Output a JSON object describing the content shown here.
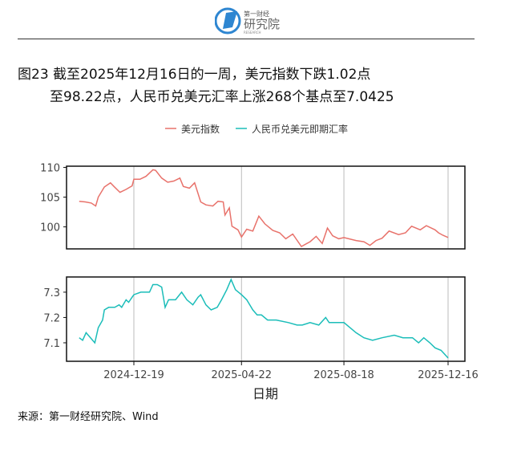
{
  "header": {
    "logo_text": "第一财经 研究院 RESEARCH"
  },
  "title": {
    "line1": "图23  截至2025年12月16日的一周，美元指数下跌1.02点",
    "line2": "至98.22点，人民币兑美元汇率上涨268个基点至7.0425"
  },
  "source": "来源：第一财经研究院、Wind",
  "chart_data": {
    "type": "line",
    "xlabel": "日期",
    "x_ticks": [
      "2024-12-19",
      "2025-04-22",
      "2025-08-18",
      "2025-12-16"
    ],
    "legend_position": "top",
    "grid": "vertical major only",
    "panels": [
      {
        "series_name": "美元指数",
        "color": "#E8726B",
        "ylim": [
          96.3,
          110.2
        ],
        "y_ticks": [
          100,
          105,
          110
        ],
        "data": [
          [
            "2024-10-17",
            104.3
          ],
          [
            "2024-10-24",
            104.2
          ],
          [
            "2024-10-31",
            104.0
          ],
          [
            "2024-11-05",
            103.5
          ],
          [
            "2024-11-08",
            105.0
          ],
          [
            "2024-11-15",
            106.7
          ],
          [
            "2024-11-22",
            107.4
          ],
          [
            "2024-11-26",
            106.8
          ],
          [
            "2024-12-03",
            105.8
          ],
          [
            "2024-12-10",
            106.3
          ],
          [
            "2024-12-17",
            106.9
          ],
          [
            "2024-12-19",
            108.0
          ],
          [
            "2024-12-26",
            108.0
          ],
          [
            "2025-01-02",
            108.5
          ],
          [
            "2025-01-10",
            109.6
          ],
          [
            "2025-01-13",
            109.5
          ],
          [
            "2025-01-20",
            108.2
          ],
          [
            "2025-01-27",
            107.5
          ],
          [
            "2025-02-03",
            107.7
          ],
          [
            "2025-02-10",
            108.2
          ],
          [
            "2025-02-14",
            106.8
          ],
          [
            "2025-02-21",
            106.5
          ],
          [
            "2025-02-27",
            107.4
          ],
          [
            "2025-03-06",
            104.2
          ],
          [
            "2025-03-12",
            103.7
          ],
          [
            "2025-03-20",
            103.5
          ],
          [
            "2025-03-26",
            104.3
          ],
          [
            "2025-04-01",
            104.2
          ],
          [
            "2025-04-03",
            102.0
          ],
          [
            "2025-04-08",
            103.2
          ],
          [
            "2025-04-11",
            100.1
          ],
          [
            "2025-04-18",
            99.5
          ],
          [
            "2025-04-22",
            98.3
          ],
          [
            "2025-04-28",
            99.6
          ],
          [
            "2025-05-05",
            99.3
          ],
          [
            "2025-05-12",
            101.8
          ],
          [
            "2025-05-19",
            100.5
          ],
          [
            "2025-05-28",
            99.4
          ],
          [
            "2025-06-05",
            99.0
          ],
          [
            "2025-06-12",
            98.0
          ],
          [
            "2025-06-20",
            98.8
          ],
          [
            "2025-06-30",
            96.7
          ],
          [
            "2025-07-10",
            97.5
          ],
          [
            "2025-07-17",
            98.4
          ],
          [
            "2025-07-24",
            97.2
          ],
          [
            "2025-07-30",
            99.8
          ],
          [
            "2025-08-05",
            98.5
          ],
          [
            "2025-08-12",
            98.0
          ],
          [
            "2025-08-18",
            98.2
          ],
          [
            "2025-09-01",
            97.7
          ],
          [
            "2025-09-10",
            97.5
          ],
          [
            "2025-09-17",
            96.9
          ],
          [
            "2025-09-24",
            97.7
          ],
          [
            "2025-10-01",
            98.1
          ],
          [
            "2025-10-09",
            99.3
          ],
          [
            "2025-10-20",
            98.7
          ],
          [
            "2025-10-28",
            99.0
          ],
          [
            "2025-11-04",
            100.1
          ],
          [
            "2025-11-14",
            99.5
          ],
          [
            "2025-11-21",
            100.2
          ],
          [
            "2025-12-01",
            99.5
          ],
          [
            "2025-12-05",
            99.0
          ],
          [
            "2025-12-10",
            98.6
          ],
          [
            "2025-12-16",
            98.22
          ]
        ]
      },
      {
        "series_name": "人民币兑美元即期汇率",
        "color": "#1BBDB9",
        "ylim": [
          7.027,
          7.36
        ],
        "y_ticks": [
          7.1,
          7.2,
          7.3
        ],
        "data": [
          [
            "2024-10-17",
            7.12
          ],
          [
            "2024-10-21",
            7.11
          ],
          [
            "2024-10-25",
            7.14
          ],
          [
            "2024-10-30",
            7.12
          ],
          [
            "2024-11-04",
            7.1
          ],
          [
            "2024-11-08",
            7.16
          ],
          [
            "2024-11-13",
            7.19
          ],
          [
            "2024-11-15",
            7.23
          ],
          [
            "2024-11-20",
            7.24
          ],
          [
            "2024-11-27",
            7.24
          ],
          [
            "2024-12-02",
            7.25
          ],
          [
            "2024-12-05",
            7.24
          ],
          [
            "2024-12-10",
            7.27
          ],
          [
            "2024-12-13",
            7.26
          ],
          [
            "2024-12-17",
            7.28
          ],
          [
            "2024-12-19",
            7.29
          ],
          [
            "2024-12-27",
            7.3
          ],
          [
            "2025-01-06",
            7.3
          ],
          [
            "2025-01-10",
            7.33
          ],
          [
            "2025-01-15",
            7.33
          ],
          [
            "2025-01-20",
            7.32
          ],
          [
            "2025-01-24",
            7.24
          ],
          [
            "2025-01-28",
            7.27
          ],
          [
            "2025-02-05",
            7.27
          ],
          [
            "2025-02-12",
            7.3
          ],
          [
            "2025-02-18",
            7.27
          ],
          [
            "2025-02-25",
            7.25
          ],
          [
            "2025-03-03",
            7.28
          ],
          [
            "2025-03-06",
            7.29
          ],
          [
            "2025-03-12",
            7.25
          ],
          [
            "2025-03-18",
            7.23
          ],
          [
            "2025-03-25",
            7.24
          ],
          [
            "2025-03-30",
            7.27
          ],
          [
            "2025-04-05",
            7.31
          ],
          [
            "2025-04-10",
            7.35
          ],
          [
            "2025-04-15",
            7.31
          ],
          [
            "2025-04-22",
            7.29
          ],
          [
            "2025-04-28",
            7.27
          ],
          [
            "2025-05-05",
            7.23
          ],
          [
            "2025-05-10",
            7.21
          ],
          [
            "2025-05-15",
            7.21
          ],
          [
            "2025-05-22",
            7.19
          ],
          [
            "2025-06-01",
            7.19
          ],
          [
            "2025-06-15",
            7.18
          ],
          [
            "2025-06-25",
            7.17
          ],
          [
            "2025-07-01",
            7.17
          ],
          [
            "2025-07-10",
            7.18
          ],
          [
            "2025-07-20",
            7.17
          ],
          [
            "2025-07-28",
            7.2
          ],
          [
            "2025-08-01",
            7.18
          ],
          [
            "2025-08-10",
            7.18
          ],
          [
            "2025-08-18",
            7.18
          ],
          [
            "2025-08-25",
            7.16
          ],
          [
            "2025-09-01",
            7.14
          ],
          [
            "2025-09-10",
            7.12
          ],
          [
            "2025-09-20",
            7.11
          ],
          [
            "2025-10-01",
            7.12
          ],
          [
            "2025-10-15",
            7.13
          ],
          [
            "2025-10-25",
            7.12
          ],
          [
            "2025-11-05",
            7.12
          ],
          [
            "2025-11-12",
            7.1
          ],
          [
            "2025-11-18",
            7.12
          ],
          [
            "2025-11-25",
            7.1
          ],
          [
            "2025-12-01",
            7.08
          ],
          [
            "2025-12-08",
            7.07
          ],
          [
            "2025-12-16",
            7.04
          ]
        ]
      }
    ]
  }
}
